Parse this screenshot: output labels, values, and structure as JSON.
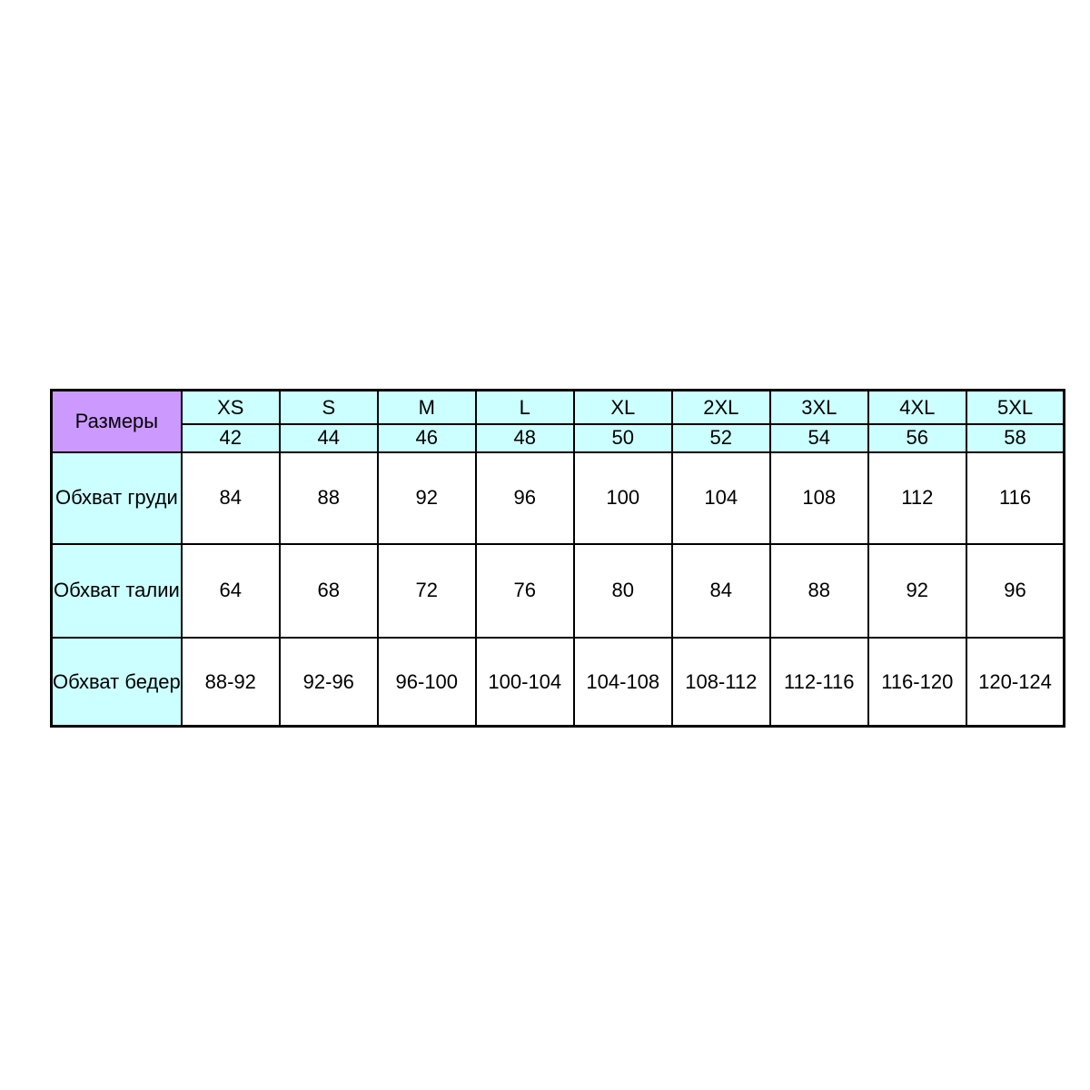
{
  "chart_data": {
    "type": "table",
    "corner_label": "Размеры",
    "size_labels": [
      "XS",
      "S",
      "M",
      "L",
      "XL",
      "2XL",
      "3XL",
      "4XL",
      "5XL"
    ],
    "size_numbers": [
      "42",
      "44",
      "46",
      "48",
      "50",
      "52",
      "54",
      "56",
      "58"
    ],
    "rows": [
      {
        "label": "Обхват груди",
        "values": [
          "84",
          "88",
          "92",
          "96",
          "100",
          "104",
          "108",
          "112",
          "116"
        ]
      },
      {
        "label": "Обхват талии",
        "values": [
          "64",
          "68",
          "72",
          "76",
          "80",
          "84",
          "88",
          "92",
          "96"
        ]
      },
      {
        "label": "Обхват бедер",
        "values": [
          "88-92",
          "92-96",
          "96-100",
          "100-104",
          "104-108",
          "108-112",
          "112-116",
          "116-120",
          "120-124"
        ]
      }
    ]
  },
  "colors": {
    "page_bg": "#ffffff",
    "corner_bg": "#cc99ff",
    "header_bg": "#ccffff",
    "label_bg": "#ccffff",
    "cell_bg": "#ffffff",
    "border": "#000000",
    "text": "#000000"
  }
}
